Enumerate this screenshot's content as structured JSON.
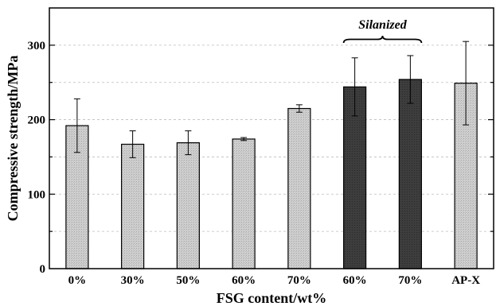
{
  "chart_data": {
    "type": "bar",
    "xlabel": "FSG content/wt%",
    "ylabel": "Compressive strength/MPa",
    "ylim": [
      0,
      350
    ],
    "yticks": [
      0,
      100,
      200,
      300
    ],
    "grid": true,
    "categories": [
      "0%",
      "30%",
      "50%",
      "60%",
      "70%",
      "60%",
      "70%",
      "AP-X"
    ],
    "values": [
      192,
      167,
      169,
      174,
      215,
      244,
      254,
      249
    ],
    "errors": [
      36,
      18,
      16,
      2,
      5,
      39,
      32,
      56
    ],
    "bar_colors": [
      "#c8c8c8",
      "#c8c8c8",
      "#c8c8c8",
      "#c8c8c8",
      "#c8c8c8",
      "#3a3a3a",
      "#3a3a3a",
      "#c8c8c8"
    ],
    "annotations": [
      {
        "text": "Silanized",
        "spans_categories": [
          5,
          6
        ]
      }
    ]
  }
}
